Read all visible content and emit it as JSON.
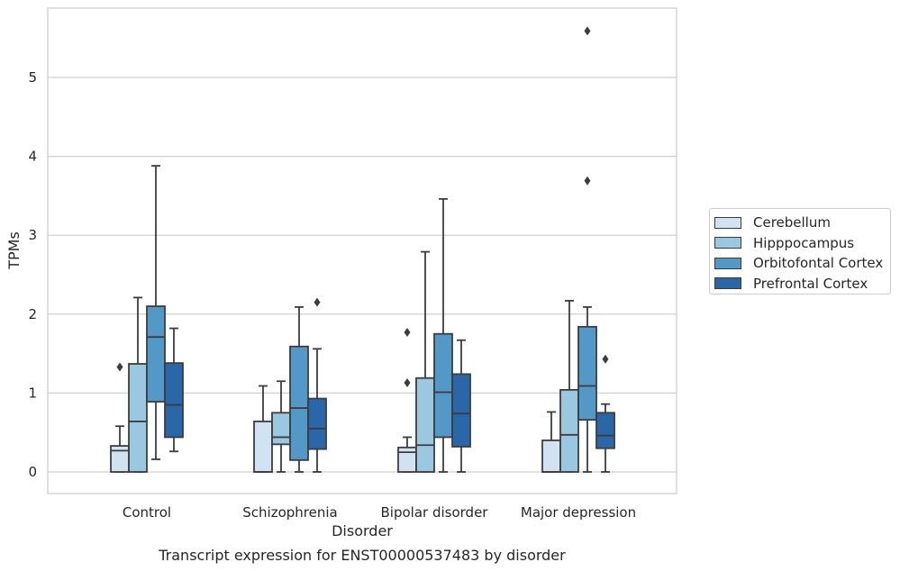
{
  "chart_data": {
    "type": "boxplot",
    "xlabel": "Disorder",
    "ylabel": "TPMs",
    "caption": "Transcript expression for ENST00000537483 by disorder",
    "ylim": [
      -0.27,
      5.9
    ],
    "yticks": [
      0,
      1,
      2,
      3,
      4,
      5
    ],
    "grid": "horizontal",
    "legend_position": "right",
    "categories": [
      "Control",
      "Schizophrenia",
      "Bipolar disorder",
      "Major depression"
    ],
    "series": [
      {
        "name": "Cerebellum",
        "color": "#d1e3f3",
        "boxes": [
          {
            "whisker_low": 0,
            "q1": 0,
            "median": 0.27,
            "q3": 0.33,
            "whisker_high": 0.58,
            "outliers": [
              1.33
            ]
          },
          {
            "whisker_low": 0,
            "q1": 0,
            "median": 0,
            "q3": 0.64,
            "whisker_high": 1.09,
            "outliers": []
          },
          {
            "whisker_low": 0,
            "q1": 0,
            "median": 0.25,
            "q3": 0.31,
            "whisker_high": 0.44,
            "outliers": [
              1.13,
              1.77
            ]
          },
          {
            "whisker_low": 0,
            "q1": 0,
            "median": 0,
            "q3": 0.4,
            "whisker_high": 0.76,
            "outliers": []
          }
        ]
      },
      {
        "name": "Hipppocampus",
        "color": "#9ac8e1",
        "boxes": [
          {
            "whisker_low": 0,
            "q1": 0,
            "median": 0.64,
            "q3": 1.37,
            "whisker_high": 2.21,
            "outliers": []
          },
          {
            "whisker_low": 0,
            "q1": 0.35,
            "median": 0.44,
            "q3": 0.75,
            "whisker_high": 1.15,
            "outliers": []
          },
          {
            "whisker_low": 0,
            "q1": 0,
            "median": 0.34,
            "q3": 1.19,
            "whisker_high": 2.79,
            "outliers": []
          },
          {
            "whisker_low": 0,
            "q1": 0,
            "median": 0.47,
            "q3": 1.04,
            "whisker_high": 2.17,
            "outliers": []
          }
        ]
      },
      {
        "name": "Orbitofontal Cortex",
        "color": "#5299c8",
        "boxes": [
          {
            "whisker_low": 0.16,
            "q1": 0.89,
            "median": 1.71,
            "q3": 2.1,
            "whisker_high": 3.88,
            "outliers": []
          },
          {
            "whisker_low": 0,
            "q1": 0.15,
            "median": 0.81,
            "q3": 1.59,
            "whisker_high": 2.09,
            "outliers": []
          },
          {
            "whisker_low": 0,
            "q1": 0.44,
            "median": 1.01,
            "q3": 1.75,
            "whisker_high": 3.46,
            "outliers": []
          },
          {
            "whisker_low": 0,
            "q1": 0.66,
            "median": 1.09,
            "q3": 1.84,
            "whisker_high": 2.09,
            "outliers": [
              3.69,
              5.59
            ]
          }
        ]
      },
      {
        "name": "Prefrontal Cortex",
        "color": "#2967a8",
        "boxes": [
          {
            "whisker_low": 0.26,
            "q1": 0.44,
            "median": 0.85,
            "q3": 1.38,
            "whisker_high": 1.82,
            "outliers": []
          },
          {
            "whisker_low": 0,
            "q1": 0.29,
            "median": 0.55,
            "q3": 0.93,
            "whisker_high": 1.56,
            "outliers": [
              2.15
            ]
          },
          {
            "whisker_low": 0,
            "q1": 0.32,
            "median": 0.74,
            "q3": 1.24,
            "whisker_high": 1.67,
            "outliers": []
          },
          {
            "whisker_low": 0,
            "q1": 0.3,
            "median": 0.46,
            "q3": 0.75,
            "whisker_high": 0.86,
            "outliers": [
              1.43
            ]
          }
        ]
      }
    ]
  }
}
